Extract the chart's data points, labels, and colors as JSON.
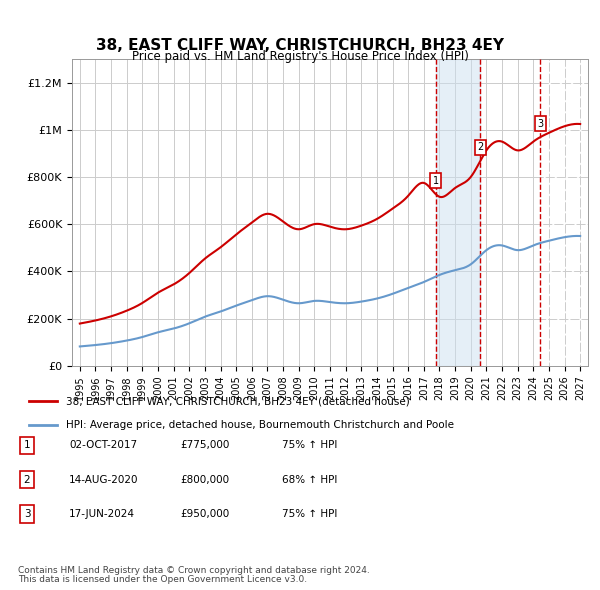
{
  "title": "38, EAST CLIFF WAY, CHRISTCHURCH, BH23 4EY",
  "subtitle": "Price paid vs. HM Land Registry's House Price Index (HPI)",
  "red_label": "38, EAST CLIFF WAY, CHRISTCHURCH, BH23 4EY (detached house)",
  "blue_label": "HPI: Average price, detached house, Bournemouth Christchurch and Poole",
  "footnote1": "Contains HM Land Registry data © Crown copyright and database right 2024.",
  "footnote2": "This data is licensed under the Open Government Licence v3.0.",
  "transactions": [
    {
      "num": 1,
      "date": "02-OCT-2017",
      "price": "£775,000",
      "pct": "75% ↑ HPI",
      "year": 2017.75
    },
    {
      "num": 2,
      "date": "14-AUG-2020",
      "price": "£800,000",
      "pct": "68% ↑ HPI",
      "year": 2020.62
    },
    {
      "num": 3,
      "date": "17-JUN-2024",
      "price": "£950,000",
      "pct": "75% ↑ HPI",
      "year": 2024.46
    }
  ],
  "ylim": [
    0,
    1300000
  ],
  "xlim_start": 1994.5,
  "xlim_end": 2027.5,
  "yticks": [
    0,
    200000,
    400000,
    600000,
    800000,
    1000000,
    1200000
  ],
  "ytick_labels": [
    "£0",
    "£200K",
    "£400K",
    "£600K",
    "£800K",
    "£1M",
    "£1.2M"
  ],
  "xticks": [
    1995,
    1996,
    1997,
    1998,
    1999,
    2000,
    2001,
    2002,
    2003,
    2004,
    2005,
    2006,
    2007,
    2008,
    2009,
    2010,
    2011,
    2012,
    2013,
    2014,
    2015,
    2016,
    2017,
    2018,
    2019,
    2020,
    2021,
    2022,
    2023,
    2024,
    2025,
    2026,
    2027
  ],
  "red_color": "#cc0000",
  "blue_color": "#6699cc",
  "bg_color": "#ffffff",
  "grid_color": "#cccccc",
  "hatch_color": "#aabbcc"
}
